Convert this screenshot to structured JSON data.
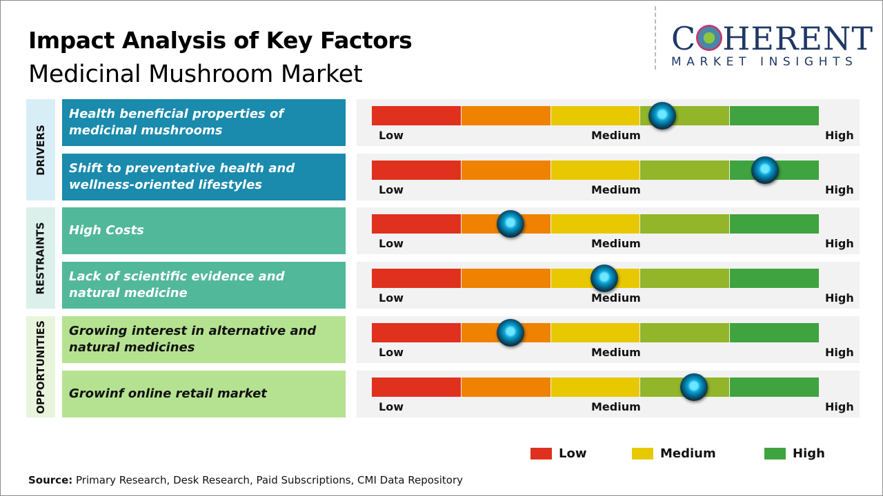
{
  "header": {
    "title": "Impact Analysis of Key Factors",
    "subtitle": "Medicinal Mushroom Market"
  },
  "logo": {
    "text_main": "COHERENT",
    "text_sub": "MARKET INSIGHTS"
  },
  "scale_labels": {
    "low": "Low",
    "medium": "Medium",
    "high": "High"
  },
  "segment_colors": [
    "#e0301e",
    "#ef8200",
    "#e8c800",
    "#92b52a",
    "#3fa33f"
  ],
  "groups": [
    {
      "label": "DRIVERS",
      "label_bg": "#d8eef7",
      "box_color": "#1a8aad",
      "text_color": "#ffffff",
      "factors": [
        {
          "text": "Health beneficial properties of medicinal mushrooms",
          "impact": 0.65
        },
        {
          "text": "Shift to preventative health and wellness-oriented lifestyles",
          "impact": 0.88
        }
      ]
    },
    {
      "label": "RESTRAINTS",
      "label_bg": "#dbf0ea",
      "box_color": "#52b89a",
      "text_color": "#ffffff",
      "factors": [
        {
          "text": "High Costs",
          "impact": 0.31
        },
        {
          "text": "Lack of scientific evidence and natural medicine",
          "impact": 0.52
        }
      ]
    },
    {
      "label": "OPPORTUNITIES",
      "label_bg": "#e8f5dc",
      "box_color": "#b5e290",
      "text_color": "#111111",
      "factors": [
        {
          "text": "Growing interest in alternative and natural medicines",
          "impact": 0.31
        },
        {
          "text": "Growinf online retail market",
          "impact": 0.72
        }
      ]
    }
  ],
  "legend": [
    {
      "label": "Low",
      "color": "#e0301e"
    },
    {
      "label": "Medium",
      "color": "#e8c800"
    },
    {
      "label": "High",
      "color": "#3fa33f"
    }
  ],
  "source": {
    "label": "Source:",
    "text": " Primary Research, Desk Research, Paid Subscriptions, CMI Data Repository"
  }
}
